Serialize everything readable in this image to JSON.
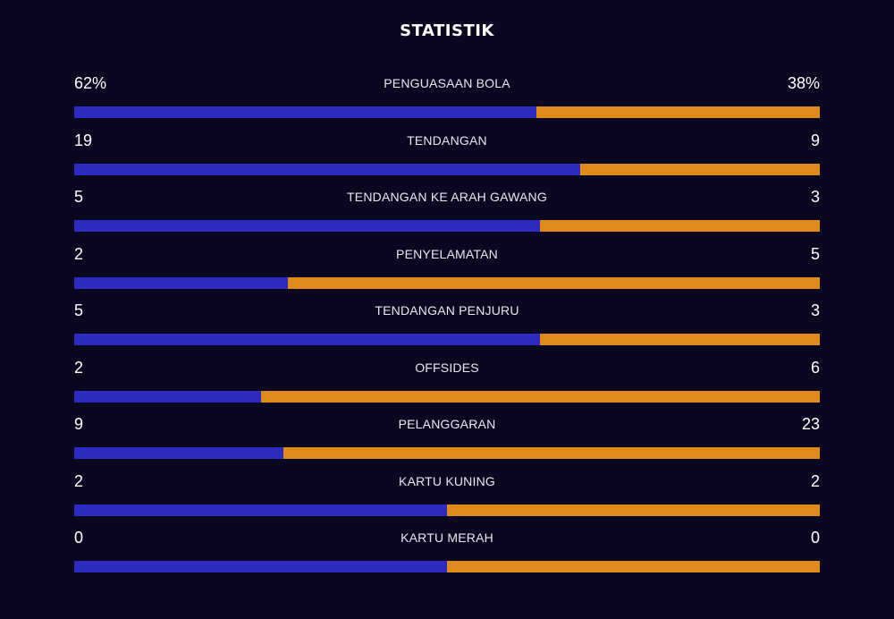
{
  "title": "STATISTIK",
  "colors": {
    "background": "#0a0720",
    "home": "#2e2ac0",
    "away": "#e08a1a"
  },
  "stats": [
    {
      "label": "PENGUASAAN BOLA",
      "home": "62%",
      "away": "38%",
      "home_share": 0.62
    },
    {
      "label": "TENDANGAN",
      "home": "19",
      "away": "9",
      "home_share": 0.679
    },
    {
      "label": "TENDANGAN KE ARAH GAWANG",
      "home": "5",
      "away": "3",
      "home_share": 0.625
    },
    {
      "label": "PENYELAMATAN",
      "home": "2",
      "away": "5",
      "home_share": 0.286
    },
    {
      "label": "TENDANGAN PENJURU",
      "home": "5",
      "away": "3",
      "home_share": 0.625
    },
    {
      "label": "OFFSIDES",
      "home": "2",
      "away": "6",
      "home_share": 0.25
    },
    {
      "label": "PELANGGARAN",
      "home": "9",
      "away": "23",
      "home_share": 0.281
    },
    {
      "label": "KARTU KUNING",
      "home": "2",
      "away": "2",
      "home_share": 0.5
    },
    {
      "label": "KARTU MERAH",
      "home": "0",
      "away": "0",
      "home_share": 0.5
    }
  ]
}
